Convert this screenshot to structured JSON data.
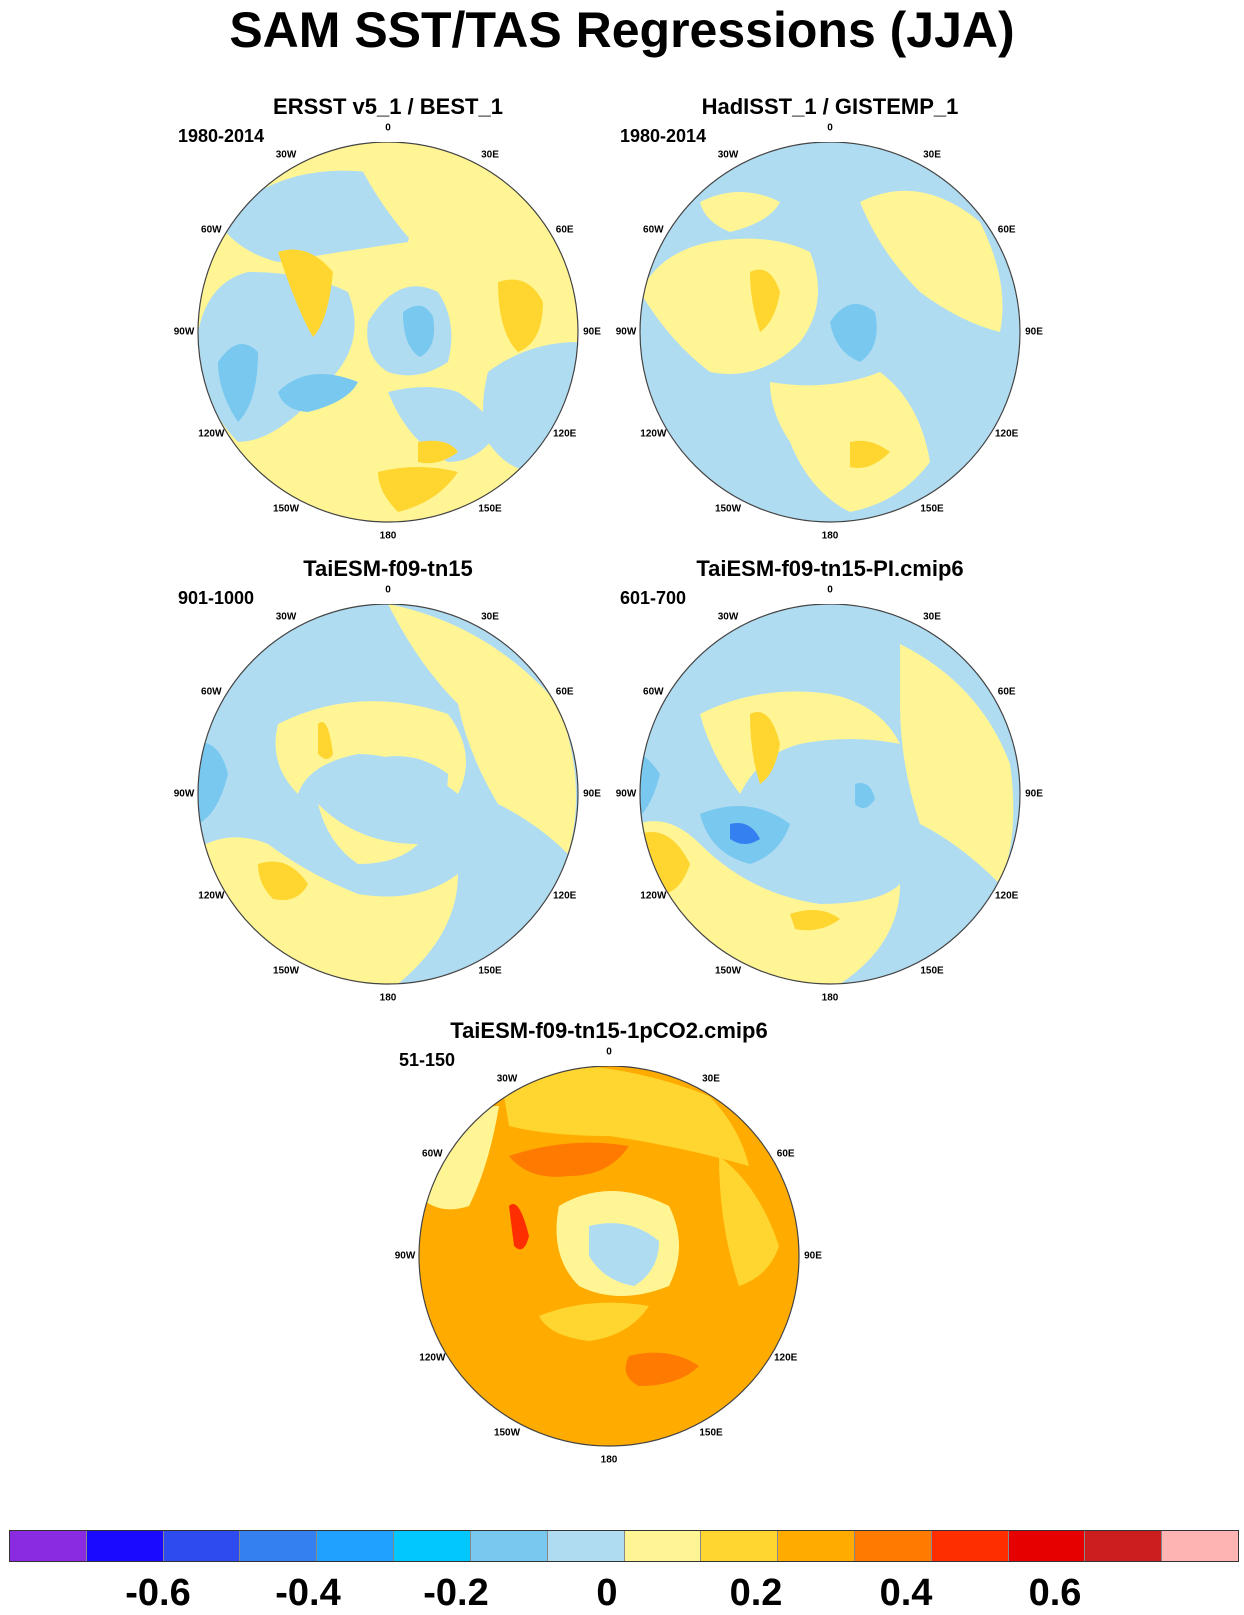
{
  "title": "SAM SST/TAS Regressions (JJA)",
  "panels": [
    {
      "title": "ERSST v5_1 / BEST_1",
      "period": "1980-2014"
    },
    {
      "title": "HadISST_1 / GISTEMP_1",
      "period": "1980-2014"
    },
    {
      "title": "TaiESM-f09-tn15",
      "period": "901-1000"
    },
    {
      "title": "TaiESM-f09-tn15-PI.cmip6",
      "period": "601-700"
    },
    {
      "title": "TaiESM-f09-tn15-1pCO2.cmip6",
      "period": "51-150"
    }
  ],
  "longitude_labels": [
    "0",
    "30E",
    "60E",
    "90E",
    "120E",
    "150E",
    "180",
    "150W",
    "120W",
    "90W",
    "60W",
    "30W"
  ],
  "colorbar": {
    "colors": [
      "#8a2be2",
      "#1a0aff",
      "#2e4bf0",
      "#3580f0",
      "#20a0ff",
      "#00c8ff",
      "#78c8f0",
      "#b0dcf2",
      "#fff595",
      "#ffd630",
      "#ffab00",
      "#ff7a00",
      "#ff2e00",
      "#e60000",
      "#cc1e1e",
      "#ffb4b4"
    ],
    "tick_labels": [
      "-0.6",
      "-0.4",
      "-0.2",
      "0",
      "0.2",
      "0.4",
      "0.6"
    ]
  }
}
